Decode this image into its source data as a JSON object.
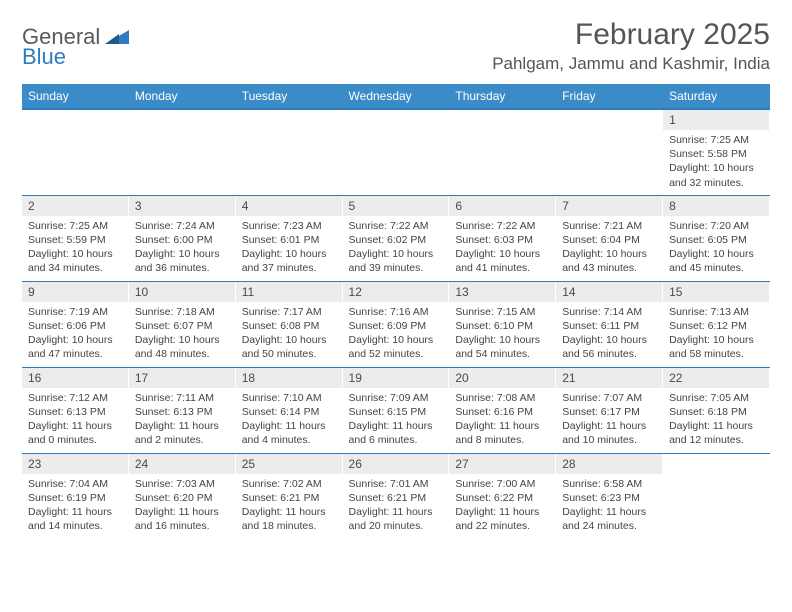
{
  "logo": {
    "line1": "General",
    "line2": "Blue"
  },
  "title": "February 2025",
  "location": "Pahlgam, Jammu and Kashmir, India",
  "dow": [
    "Sunday",
    "Monday",
    "Tuesday",
    "Wednesday",
    "Thursday",
    "Friday",
    "Saturday"
  ],
  "colors": {
    "header_bg": "#3b8bc8",
    "header_border": "#2e7cc2",
    "daynum_bg": "#ececec",
    "text": "#333333"
  },
  "weeks": [
    [
      {
        "n": "",
        "sr": "",
        "ss": "",
        "dl": ""
      },
      {
        "n": "",
        "sr": "",
        "ss": "",
        "dl": ""
      },
      {
        "n": "",
        "sr": "",
        "ss": "",
        "dl": ""
      },
      {
        "n": "",
        "sr": "",
        "ss": "",
        "dl": ""
      },
      {
        "n": "",
        "sr": "",
        "ss": "",
        "dl": ""
      },
      {
        "n": "",
        "sr": "",
        "ss": "",
        "dl": ""
      },
      {
        "n": "1",
        "sr": "Sunrise: 7:25 AM",
        "ss": "Sunset: 5:58 PM",
        "dl": "Daylight: 10 hours and 32 minutes."
      }
    ],
    [
      {
        "n": "2",
        "sr": "Sunrise: 7:25 AM",
        "ss": "Sunset: 5:59 PM",
        "dl": "Daylight: 10 hours and 34 minutes."
      },
      {
        "n": "3",
        "sr": "Sunrise: 7:24 AM",
        "ss": "Sunset: 6:00 PM",
        "dl": "Daylight: 10 hours and 36 minutes."
      },
      {
        "n": "4",
        "sr": "Sunrise: 7:23 AM",
        "ss": "Sunset: 6:01 PM",
        "dl": "Daylight: 10 hours and 37 minutes."
      },
      {
        "n": "5",
        "sr": "Sunrise: 7:22 AM",
        "ss": "Sunset: 6:02 PM",
        "dl": "Daylight: 10 hours and 39 minutes."
      },
      {
        "n": "6",
        "sr": "Sunrise: 7:22 AM",
        "ss": "Sunset: 6:03 PM",
        "dl": "Daylight: 10 hours and 41 minutes."
      },
      {
        "n": "7",
        "sr": "Sunrise: 7:21 AM",
        "ss": "Sunset: 6:04 PM",
        "dl": "Daylight: 10 hours and 43 minutes."
      },
      {
        "n": "8",
        "sr": "Sunrise: 7:20 AM",
        "ss": "Sunset: 6:05 PM",
        "dl": "Daylight: 10 hours and 45 minutes."
      }
    ],
    [
      {
        "n": "9",
        "sr": "Sunrise: 7:19 AM",
        "ss": "Sunset: 6:06 PM",
        "dl": "Daylight: 10 hours and 47 minutes."
      },
      {
        "n": "10",
        "sr": "Sunrise: 7:18 AM",
        "ss": "Sunset: 6:07 PM",
        "dl": "Daylight: 10 hours and 48 minutes."
      },
      {
        "n": "11",
        "sr": "Sunrise: 7:17 AM",
        "ss": "Sunset: 6:08 PM",
        "dl": "Daylight: 10 hours and 50 minutes."
      },
      {
        "n": "12",
        "sr": "Sunrise: 7:16 AM",
        "ss": "Sunset: 6:09 PM",
        "dl": "Daylight: 10 hours and 52 minutes."
      },
      {
        "n": "13",
        "sr": "Sunrise: 7:15 AM",
        "ss": "Sunset: 6:10 PM",
        "dl": "Daylight: 10 hours and 54 minutes."
      },
      {
        "n": "14",
        "sr": "Sunrise: 7:14 AM",
        "ss": "Sunset: 6:11 PM",
        "dl": "Daylight: 10 hours and 56 minutes."
      },
      {
        "n": "15",
        "sr": "Sunrise: 7:13 AM",
        "ss": "Sunset: 6:12 PM",
        "dl": "Daylight: 10 hours and 58 minutes."
      }
    ],
    [
      {
        "n": "16",
        "sr": "Sunrise: 7:12 AM",
        "ss": "Sunset: 6:13 PM",
        "dl": "Daylight: 11 hours and 0 minutes."
      },
      {
        "n": "17",
        "sr": "Sunrise: 7:11 AM",
        "ss": "Sunset: 6:13 PM",
        "dl": "Daylight: 11 hours and 2 minutes."
      },
      {
        "n": "18",
        "sr": "Sunrise: 7:10 AM",
        "ss": "Sunset: 6:14 PM",
        "dl": "Daylight: 11 hours and 4 minutes."
      },
      {
        "n": "19",
        "sr": "Sunrise: 7:09 AM",
        "ss": "Sunset: 6:15 PM",
        "dl": "Daylight: 11 hours and 6 minutes."
      },
      {
        "n": "20",
        "sr": "Sunrise: 7:08 AM",
        "ss": "Sunset: 6:16 PM",
        "dl": "Daylight: 11 hours and 8 minutes."
      },
      {
        "n": "21",
        "sr": "Sunrise: 7:07 AM",
        "ss": "Sunset: 6:17 PM",
        "dl": "Daylight: 11 hours and 10 minutes."
      },
      {
        "n": "22",
        "sr": "Sunrise: 7:05 AM",
        "ss": "Sunset: 6:18 PM",
        "dl": "Daylight: 11 hours and 12 minutes."
      }
    ],
    [
      {
        "n": "23",
        "sr": "Sunrise: 7:04 AM",
        "ss": "Sunset: 6:19 PM",
        "dl": "Daylight: 11 hours and 14 minutes."
      },
      {
        "n": "24",
        "sr": "Sunrise: 7:03 AM",
        "ss": "Sunset: 6:20 PM",
        "dl": "Daylight: 11 hours and 16 minutes."
      },
      {
        "n": "25",
        "sr": "Sunrise: 7:02 AM",
        "ss": "Sunset: 6:21 PM",
        "dl": "Daylight: 11 hours and 18 minutes."
      },
      {
        "n": "26",
        "sr": "Sunrise: 7:01 AM",
        "ss": "Sunset: 6:21 PM",
        "dl": "Daylight: 11 hours and 20 minutes."
      },
      {
        "n": "27",
        "sr": "Sunrise: 7:00 AM",
        "ss": "Sunset: 6:22 PM",
        "dl": "Daylight: 11 hours and 22 minutes."
      },
      {
        "n": "28",
        "sr": "Sunrise: 6:58 AM",
        "ss": "Sunset: 6:23 PM",
        "dl": "Daylight: 11 hours and 24 minutes."
      },
      {
        "n": "",
        "sr": "",
        "ss": "",
        "dl": ""
      }
    ]
  ]
}
